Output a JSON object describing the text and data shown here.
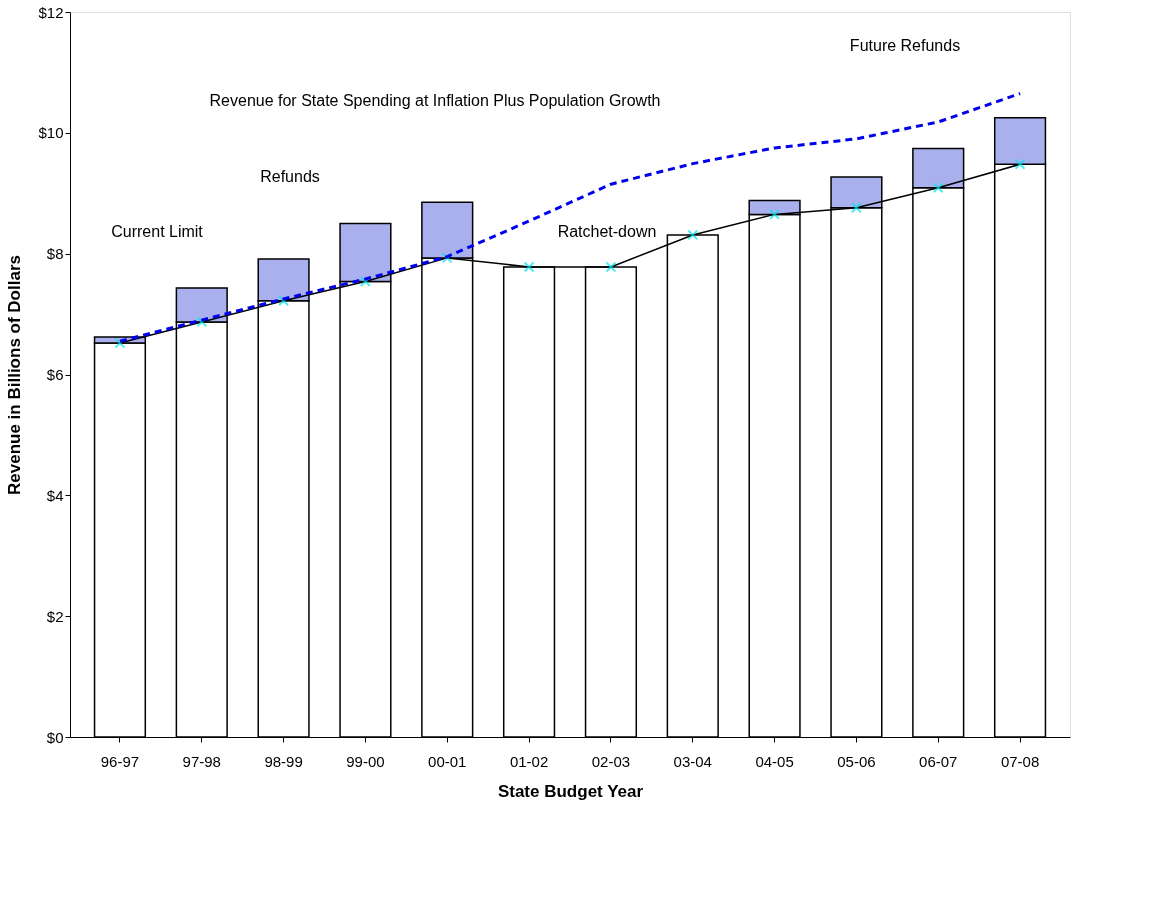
{
  "chart_data": {
    "type": "bar",
    "stacked": true,
    "xlabel": "State Budget Year",
    "ylabel": "Revenue in Billions of Dollars",
    "categories": [
      "96-97",
      "97-98",
      "98-99",
      "99-00",
      "00-01",
      "01-02",
      "02-03",
      "03-04",
      "04-05",
      "05-06",
      "06-07",
      "07-08"
    ],
    "series": [
      {
        "color": "#ffffff",
        "values": [
          6.52,
          6.87,
          7.22,
          7.54,
          7.93,
          7.78,
          7.78,
          8.31,
          8.65,
          8.76,
          9.09,
          9.48
        ]
      },
      {
        "color": "#aab0ee",
        "values": [
          0.1,
          0.56,
          0.69,
          0.96,
          0.92,
          0,
          0,
          0,
          0.23,
          0.51,
          0.65,
          0.77
        ]
      },
      {
        "type": "line",
        "color": "#000000",
        "marker": "cross",
        "line_style": "solid",
        "values": [
          6.52,
          6.87,
          7.22,
          7.54,
          7.93,
          7.78,
          7.78,
          8.31,
          8.65,
          8.76,
          9.09,
          9.48
        ]
      },
      {
        "type": "line",
        "color": "#0000ee",
        "marker": "none",
        "line_style": "dashed",
        "values": [
          6.55,
          6.9,
          7.25,
          7.58,
          7.95,
          8.54,
          9.15,
          9.49,
          9.75,
          9.9,
          10.18,
          10.65
        ]
      }
    ],
    "ylim": [
      0,
      12
    ],
    "yticks": [
      {
        "value": 0,
        "label": "$0"
      },
      {
        "value": 2,
        "label": "$2"
      },
      {
        "value": 4,
        "label": "$4"
      },
      {
        "value": 6,
        "label": "$6"
      },
      {
        "value": 8,
        "label": "$8"
      },
      {
        "value": 10,
        "label": "$10"
      },
      {
        "value": 12,
        "label": "$12"
      }
    ],
    "grid": false,
    "annotations": [
      "Current Limit",
      "Refunds",
      "Ratchet-down",
      "Revenue for State Spending at Inflation Plus Population Growth",
      "Future Refunds"
    ]
  }
}
